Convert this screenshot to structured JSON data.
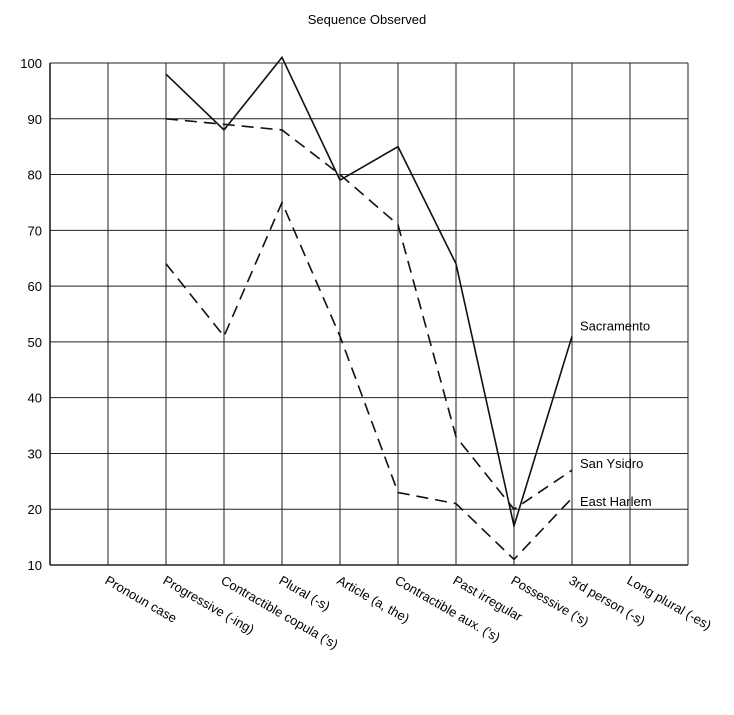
{
  "chart_data": {
    "type": "line",
    "title": "Sequence Observed",
    "xlabel": "",
    "ylabel": "",
    "ylim": [
      10,
      100
    ],
    "yticks": [
      10,
      20,
      30,
      40,
      50,
      60,
      70,
      80,
      90,
      100
    ],
    "grid": true,
    "categories": [
      "Pronoun case",
      "Progressive (-ing)",
      "Contractible copula ('s)",
      "Plural (-s)",
      "Article (a, the)",
      "Contractible aux. ('s)",
      "Past irregular",
      "Possessive ('s)",
      "3rd person (-s)",
      "Long plural (-es)"
    ],
    "series": [
      {
        "name": "Sacramento",
        "style": "solid",
        "color": "#111111",
        "values": [
          null,
          98,
          88,
          101,
          79,
          85,
          64,
          17,
          51,
          null
        ]
      },
      {
        "name": "San Ysidro",
        "style": "dashed",
        "color": "#111111",
        "values": [
          null,
          90,
          89,
          88,
          80,
          71,
          33,
          20,
          27,
          null
        ]
      },
      {
        "name": "East Harlem",
        "style": "dashed",
        "color": "#111111",
        "values": [
          null,
          64,
          51,
          75,
          51,
          23,
          21,
          11,
          22,
          null
        ]
      }
    ]
  }
}
